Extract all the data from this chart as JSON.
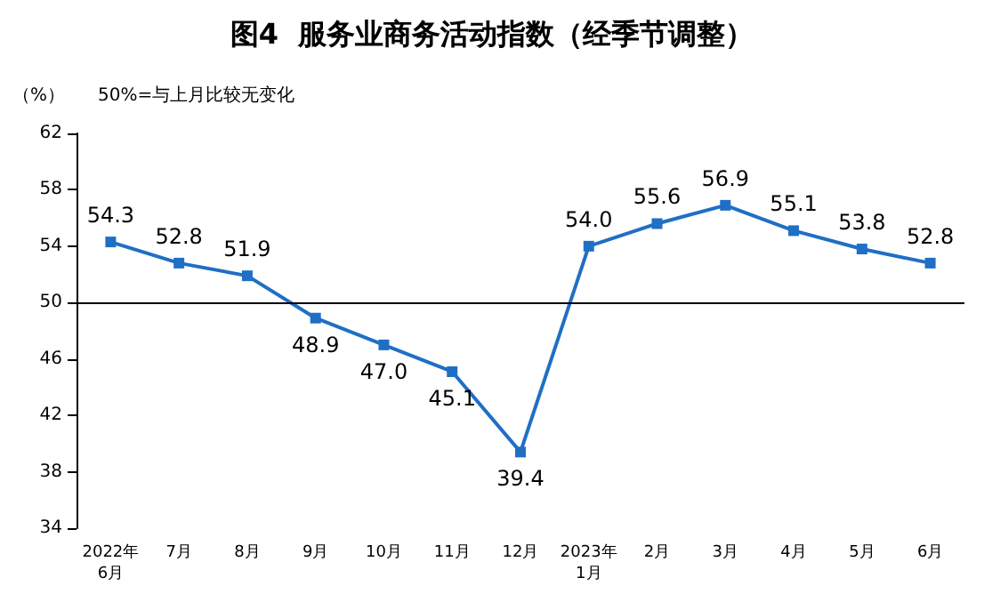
{
  "chart_data": {
    "type": "line",
    "title": "图4  服务业商务活动指数（经季节调整）",
    "subtitle": "50%=与上月比较无变化",
    "ylabel": "（%）",
    "categories": [
      "2022年\n6月",
      "7月",
      "8月",
      "9月",
      "10月",
      "11月",
      "12月",
      "2023年\n1月",
      "2月",
      "3月",
      "4月",
      "5月",
      "6月"
    ],
    "series": [
      {
        "color": "#1f6fc5",
        "values": [
          54.3,
          52.8,
          51.9,
          48.9,
          47.0,
          45.1,
          39.4,
          54.0,
          55.6,
          56.9,
          55.1,
          53.8,
          52.8
        ],
        "value_labels": [
          "54.3",
          "52.8",
          "51.9",
          "48.9",
          "47.0",
          "45.1",
          "39.4",
          "54.0",
          "55.6",
          "56.9",
          "55.1",
          "53.8",
          "52.8"
        ]
      }
    ],
    "ylim": [
      34,
      62
    ],
    "yticks": [
      34,
      38,
      42,
      46,
      50,
      54,
      58,
      62
    ],
    "ref_lines": [
      {
        "axis": "y",
        "value": 50,
        "color": "#000000"
      }
    ],
    "marker": "square",
    "grid": false
  }
}
